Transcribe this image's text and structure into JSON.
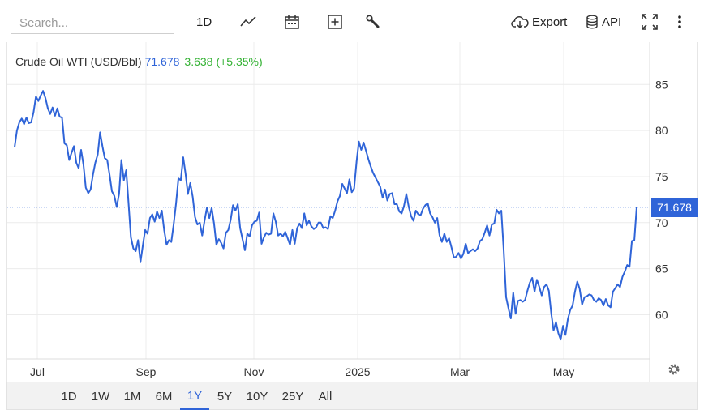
{
  "toolbar": {
    "search_placeholder": "Search...",
    "interval_label": "1D",
    "export_label": "Export",
    "api_label": "API"
  },
  "legend": {
    "name": "Crude Oil WTI (USD/Bbl)",
    "price": "71.678",
    "change": "3.638",
    "change_pct": "(+5.35%)"
  },
  "price_tag": "71.678",
  "range_buttons": [
    "1D",
    "1W",
    "1M",
    "6M",
    "1Y",
    "5Y",
    "10Y",
    "25Y",
    "All"
  ],
  "active_range": "1Y",
  "colors": {
    "line": "#2f64d8",
    "positive": "#33b233",
    "grid": "#ececec"
  },
  "chart_data": {
    "type": "line",
    "series": [
      {
        "name": "Crude Oil WTI (USD/Bbl)",
        "values": [
          78.2,
          80.0,
          80.9,
          81.3,
          80.7,
          81.4,
          80.8,
          80.9,
          82.0,
          83.7,
          83.2,
          83.8,
          84.3,
          83.5,
          82.4,
          81.8,
          82.5,
          81.6,
          82.4,
          81.5,
          81.4,
          78.6,
          78.4,
          76.8,
          77.6,
          78.3,
          76.5,
          75.9,
          77.9,
          76.3,
          73.8,
          73.2,
          73.6,
          75.2,
          76.5,
          77.4,
          79.8,
          78.3,
          77.0,
          76.8,
          75.2,
          73.4,
          72.9,
          71.7,
          73.1,
          76.8,
          74.6,
          75.7,
          72.1,
          68.4,
          67.2,
          66.9,
          68.1,
          65.7,
          67.5,
          69.2,
          68.8,
          70.5,
          70.9,
          70.1,
          71.2,
          70.5,
          71.3,
          69.2,
          67.6,
          68.1,
          67.9,
          69.8,
          72.1,
          74.8,
          74.6,
          77.1,
          75.3,
          73.1,
          74.3,
          72.8,
          70.6,
          69.8,
          70.0,
          68.6,
          70.2,
          71.6,
          70.5,
          71.6,
          69.9,
          67.6,
          68.2,
          67.8,
          67.2,
          68.9,
          69.2,
          70.3,
          71.9,
          71.3,
          72.0,
          69.4,
          68.2,
          67.0,
          68.8,
          68.5,
          69.7,
          70.1,
          70.2,
          71.1,
          67.7,
          68.4,
          68.9,
          68.7,
          68.8,
          71.0,
          70.1,
          68.6,
          68.8,
          68.5,
          69.0,
          68.3,
          67.6,
          69.2,
          67.7,
          69.4,
          69.9,
          69.4,
          71.0,
          69.7,
          70.2,
          69.6,
          69.3,
          69.5,
          70.0,
          70.0,
          69.4,
          69.5,
          69.3,
          70.7,
          70.5,
          71.3,
          72.3,
          72.9,
          74.2,
          73.7,
          73.2,
          74.7,
          73.3,
          73.7,
          76.6,
          78.8,
          77.9,
          78.7,
          77.8,
          76.9,
          76.1,
          75.4,
          74.9,
          74.4,
          73.9,
          72.7,
          73.6,
          72.4,
          73.1,
          73.2,
          72.0,
          72.0,
          71.2,
          71.0,
          71.8,
          73.1,
          71.7,
          70.7,
          70.2,
          71.3,
          70.9,
          70.8,
          71.5,
          71.9,
          72.1,
          71.0,
          70.6,
          70.0,
          70.5,
          68.6,
          67.9,
          68.8,
          67.9,
          68.3,
          67.3,
          66.2,
          66.3,
          66.7,
          66.1,
          66.6,
          67.7,
          66.7,
          66.9,
          67.1,
          66.9,
          67.2,
          68.0,
          68.2,
          68.9,
          69.7,
          68.6,
          69.8,
          69.9,
          71.4,
          71.0,
          71.3,
          66.9,
          61.9,
          60.7,
          59.6,
          62.4,
          60.1,
          61.5,
          61.6,
          61.4,
          61.6,
          62.6,
          63.5,
          64.0,
          62.5,
          63.8,
          63.0,
          62.1,
          63.0,
          63.3,
          62.6,
          60.2,
          58.3,
          59.2,
          58.0,
          57.3,
          58.8,
          57.8,
          59.5,
          60.5,
          61.0,
          62.5,
          63.6,
          62.8,
          61.1,
          61.9,
          62.0,
          62.2,
          62.1,
          61.6,
          61.4,
          61.8,
          61.6,
          61.0,
          61.7,
          61.0,
          60.8,
          62.5,
          62.9,
          63.3,
          63.0,
          64.1,
          64.7,
          65.4,
          65.2,
          68.0,
          68.1,
          71.7
        ],
        "color": "#2f64d8"
      }
    ],
    "x_tick_labels": [
      "Jul",
      "Sep",
      "Nov",
      "2025",
      "Mar",
      "May"
    ],
    "y_ticks": [
      60,
      65,
      70,
      75,
      80,
      85
    ],
    "ylim": [
      55.2,
      89.6
    ],
    "last_value": 71.678,
    "grid": true
  }
}
